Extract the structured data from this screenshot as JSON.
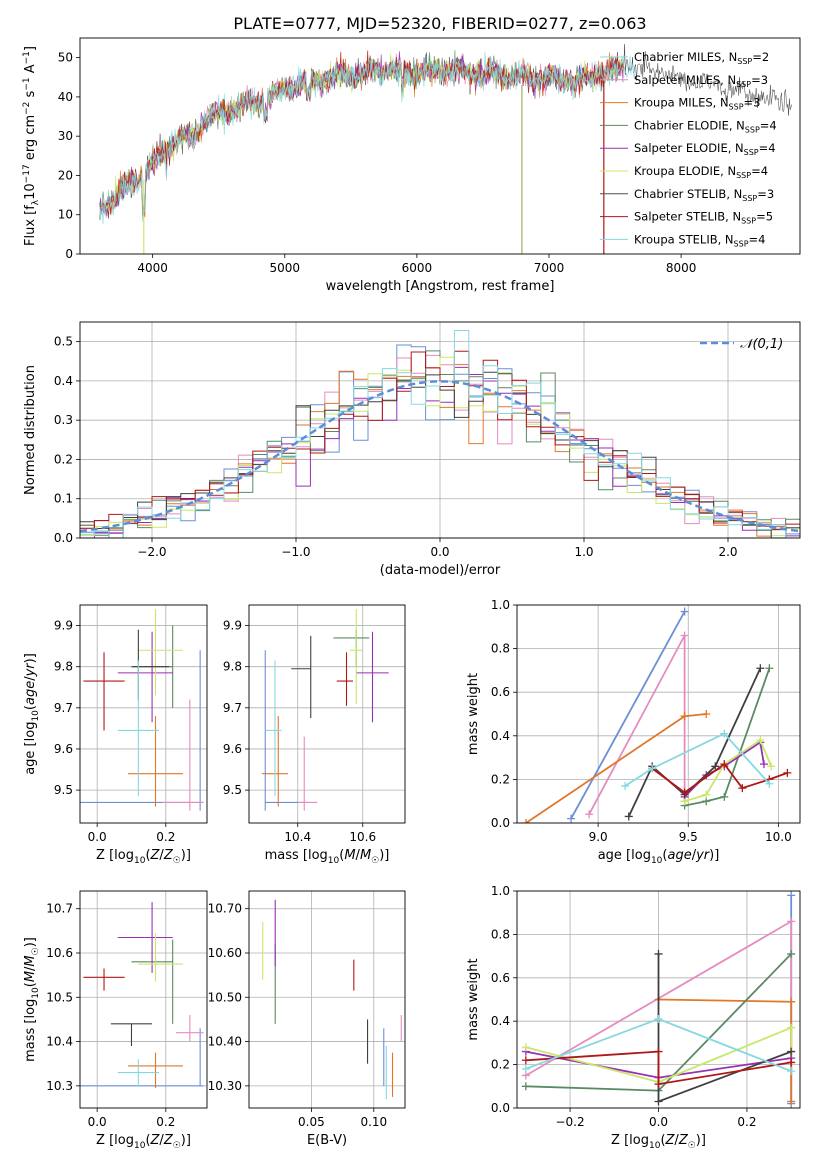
{
  "figure": {
    "title": "PLATE=0777, MJD=52320, FIBERID=0277, z=0.063"
  },
  "colors": {
    "c0": "#6a8fd6",
    "c1": "#e68bbf",
    "c2": "#e0772a",
    "c3": "#5a8a63",
    "c4": "#9a2fb5",
    "c5": "#c8e86a",
    "c6": "#505050",
    "c7": "#b01818",
    "c8": "#86d8e0"
  },
  "chart_data": [
    {
      "id": "spectrum",
      "type": "line",
      "xlabel": "wavelength [Angstrom, rest frame]",
      "ylabel": "Flux [f_λ10⁻¹⁷ erg cm⁻² s⁻¹ A⁻¹]",
      "xlim": [
        3450,
        8900
      ],
      "ylim": [
        0,
        55
      ],
      "xticks": [
        4000,
        5000,
        6000,
        7000,
        8000
      ],
      "yticks": [
        0,
        10,
        20,
        30,
        40,
        50
      ],
      "grid": false,
      "legend_placement": "upper right",
      "series": [
        {
          "name": "Chabrier MILES, N_SSP=2",
          "color_key": "c8"
        },
        {
          "name": "Salpeter MILES, N_SSP=3",
          "color_key": "c1"
        },
        {
          "name": "Kroupa MILES, N_SSP=3",
          "color_key": "c2"
        },
        {
          "name": "Chabrier ELODIE, N_SSP=4",
          "color_key": "c3"
        },
        {
          "name": "Salpeter ELODIE, N_SSP=4",
          "color_key": "c4"
        },
        {
          "name": "Kroupa ELODIE, N_SSP=4",
          "color_key": "c5"
        },
        {
          "name": "Chabrier STELIB, N_SSP=3",
          "color_key": "c6"
        },
        {
          "name": "Salpeter STELIB, N_SSP=5",
          "color_key": "c7"
        },
        {
          "name": "Kroupa STELIB, N_SSP=4",
          "color_key": "c8"
        }
      ],
      "data_envelope": {
        "x": [
          3600,
          3700,
          3800,
          3900,
          4000,
          4100,
          4200,
          4300,
          4400,
          4600,
          4800,
          5000,
          5200,
          5400,
          5600,
          5800,
          6000,
          6200,
          6400,
          6600,
          6800,
          7000,
          7200,
          7400,
          7600,
          7800,
          8000,
          8200,
          8400,
          8600,
          8800
        ],
        "y": [
          12,
          14,
          17,
          20,
          23,
          27,
          29,
          30,
          34,
          37,
          39,
          42,
          44,
          45,
          46,
          47,
          46,
          47,
          46,
          46,
          45,
          45,
          44,
          46,
          48,
          47,
          44,
          44,
          42,
          40,
          38
        ]
      },
      "sharp_dips": [
        {
          "x": 3933,
          "y": 0
        },
        {
          "x": 6795,
          "y": 0
        },
        {
          "x": 7415,
          "y": 0
        }
      ]
    },
    {
      "id": "residual_hist",
      "type": "step-histogram",
      "xlabel": "(data-model)/error",
      "ylabel": "Normed distribution",
      "xlim": [
        -2.5,
        2.5
      ],
      "ylim": [
        0,
        0.55
      ],
      "xticks": [
        -2,
        -1,
        0,
        1,
        2
      ],
      "yticks": [
        0.0,
        0.1,
        0.2,
        0.3,
        0.4,
        0.5
      ],
      "grid": true,
      "legend_placement": "upper right",
      "reference_curve": {
        "name": "𝒩(0,1)",
        "mean": 0,
        "sigma": 1,
        "color": "#5b8dd9"
      },
      "bin_width": 0.1,
      "series_count": 9
    },
    {
      "id": "age_vs_Z",
      "type": "errorbar",
      "xlabel": "Z [log₁₀(Z/Z☉)]",
      "ylabel": "age  [log₁₀(age/yr)]",
      "xlim": [
        -0.05,
        0.32
      ],
      "ylim": [
        9.42,
        9.95
      ],
      "xticks": [
        0.0,
        0.2
      ],
      "yticks": [
        9.5,
        9.6,
        9.7,
        9.8,
        9.9
      ],
      "grid": true,
      "points": [
        {
          "color_key": "c0",
          "x": 0.3,
          "xerr": [
            0.35,
            0.01
          ],
          "y": 9.47,
          "yerr": [
            0.02,
            0.37
          ]
        },
        {
          "color_key": "c1",
          "x": 0.27,
          "xerr": [
            0.08,
            0.04
          ],
          "y": 9.47,
          "yerr": [
            0.02,
            0.25
          ]
        },
        {
          "color_key": "c2",
          "x": 0.17,
          "xerr": [
            0.08,
            0.08
          ],
          "y": 9.54,
          "yerr": [
            0.08,
            0.14
          ]
        },
        {
          "color_key": "c3",
          "x": 0.22,
          "xerr": [
            0.12,
            0.0
          ],
          "y": 9.8,
          "yerr": [
            0.1,
            0.1
          ]
        },
        {
          "color_key": "c4",
          "x": 0.16,
          "xerr": [
            0.1,
            0.06
          ],
          "y": 9.785,
          "yerr": [
            0.12,
            0.1
          ]
        },
        {
          "color_key": "c5",
          "x": 0.17,
          "xerr": [
            0.05,
            0.08
          ],
          "y": 9.84,
          "yerr": [
            0.11,
            0.1
          ]
        },
        {
          "color_key": "c6",
          "x": 0.12,
          "xerr": [
            0.02,
            0.09
          ],
          "y": 9.8,
          "yerr": [
            0.08,
            0.09
          ]
        },
        {
          "color_key": "c7",
          "x": 0.02,
          "xerr": [
            0.06,
            0.06
          ],
          "y": 9.765,
          "yerr": [
            0.12,
            0.07
          ]
        },
        {
          "color_key": "c8",
          "x": 0.12,
          "xerr": [
            0.06,
            0.06
          ],
          "y": 9.645,
          "yerr": [
            0.16,
            0.17
          ]
        }
      ]
    },
    {
      "id": "age_vs_mass",
      "type": "errorbar",
      "xlabel": "mass [log₁₀(M/M☉)]",
      "ylabel": "",
      "xlim": [
        10.25,
        10.73
      ],
      "ylim": [
        9.42,
        9.95
      ],
      "xticks": [
        10.4,
        10.6
      ],
      "yticks": [
        9.5,
        9.6,
        9.7,
        9.8,
        9.9
      ],
      "grid": true,
      "points": [
        {
          "color_key": "c0",
          "x": 10.3,
          "xerr": [
            0.0,
            0.13
          ],
          "y": 9.47,
          "yerr": [
            0.02,
            0.37
          ]
        },
        {
          "color_key": "c1",
          "x": 10.42,
          "xerr": [
            0.02,
            0.04
          ],
          "y": 9.47,
          "yerr": [
            0.02,
            0.16
          ]
        },
        {
          "color_key": "c2",
          "x": 10.34,
          "xerr": [
            0.05,
            0.03
          ],
          "y": 9.54,
          "yerr": [
            0.08,
            0.14
          ]
        },
        {
          "color_key": "c3",
          "x": 10.58,
          "xerr": [
            0.07,
            0.04
          ],
          "y": 9.87,
          "yerr": [
            0.07,
            0.02
          ]
        },
        {
          "color_key": "c4",
          "x": 10.63,
          "xerr": [
            0.05,
            0.05
          ],
          "y": 9.785,
          "yerr": [
            0.12,
            0.1
          ]
        },
        {
          "color_key": "c5",
          "x": 10.58,
          "xerr": [
            0.02,
            0.02
          ],
          "y": 9.84,
          "yerr": [
            0.13,
            0.1
          ]
        },
        {
          "color_key": "c6",
          "x": 10.44,
          "xerr": [
            0.06,
            0.0
          ],
          "y": 9.795,
          "yerr": [
            0.12,
            0.08
          ]
        },
        {
          "color_key": "c7",
          "x": 10.55,
          "xerr": [
            0.03,
            0.02
          ],
          "y": 9.765,
          "yerr": [
            0.06,
            0.07
          ]
        },
        {
          "color_key": "c8",
          "x": 10.33,
          "xerr": [
            0.03,
            0.02
          ],
          "y": 9.645,
          "yerr": [
            0.16,
            0.17
          ]
        }
      ]
    },
    {
      "id": "massweight_vs_age",
      "type": "line",
      "xlabel": "age  [log₁₀(age/yr)]",
      "ylabel": "mass weight",
      "xlim": [
        8.55,
        10.12
      ],
      "ylim": [
        0,
        1.0
      ],
      "xticks": [
        9.0,
        9.5,
        10.0
      ],
      "yticks": [
        0.0,
        0.2,
        0.4,
        0.6,
        0.8,
        1.0
      ],
      "grid": true,
      "series": [
        {
          "color_key": "c0",
          "x": [
            8.85,
            9.48
          ],
          "y": [
            0.02,
            0.97
          ]
        },
        {
          "color_key": "c1",
          "x": [
            8.95,
            9.48,
            9.48
          ],
          "y": [
            0.04,
            0.86,
            0.1
          ]
        },
        {
          "color_key": "c2",
          "x": [
            8.6,
            9.48,
            9.6
          ],
          "y": [
            0.0,
            0.49,
            0.5
          ]
        },
        {
          "color_key": "c3",
          "x": [
            9.48,
            9.6,
            9.7,
            9.95
          ],
          "y": [
            0.08,
            0.1,
            0.12,
            0.71
          ]
        },
        {
          "color_key": "c4",
          "x": [
            9.48,
            9.6,
            9.7,
            9.9,
            9.92
          ],
          "y": [
            0.12,
            0.22,
            0.26,
            0.37,
            0.27
          ]
        },
        {
          "color_key": "c5",
          "x": [
            9.48,
            9.6,
            9.7,
            9.9,
            9.96
          ],
          "y": [
            0.1,
            0.13,
            0.27,
            0.38,
            0.26
          ]
        },
        {
          "color_key": "c6",
          "x": [
            9.17,
            9.3,
            9.48,
            9.65,
            9.9
          ],
          "y": [
            0.03,
            0.26,
            0.13,
            0.26,
            0.71
          ]
        },
        {
          "color_key": "c7",
          "x": [
            9.3,
            9.48,
            9.7,
            9.8,
            9.95,
            10.05
          ],
          "y": [
            0.25,
            0.14,
            0.27,
            0.16,
            0.2,
            0.23
          ]
        },
        {
          "color_key": "c8",
          "x": [
            9.15,
            9.3,
            9.7,
            9.95
          ],
          "y": [
            0.17,
            0.25,
            0.41,
            0.18
          ]
        }
      ]
    },
    {
      "id": "mass_vs_Z",
      "type": "errorbar",
      "xlabel": "Z [log₁₀(Z/Z☉)]",
      "ylabel": "mass [log₁₀(M/M☉)]",
      "xlim": [
        -0.05,
        0.32
      ],
      "ylim": [
        10.25,
        10.74
      ],
      "xticks": [
        0.0,
        0.2
      ],
      "yticks": [
        10.3,
        10.4,
        10.5,
        10.6,
        10.7
      ],
      "grid": true,
      "points": [
        {
          "color_key": "c0",
          "x": 0.3,
          "xerr": [
            0.35,
            0.01
          ],
          "y": 10.3,
          "yerr": [
            0.0,
            0.13
          ]
        },
        {
          "color_key": "c1",
          "x": 0.27,
          "xerr": [
            0.04,
            0.04
          ],
          "y": 10.42,
          "yerr": [
            0.02,
            0.04
          ]
        },
        {
          "color_key": "c2",
          "x": 0.17,
          "xerr": [
            0.08,
            0.08
          ],
          "y": 10.345,
          "yerr": [
            0.05,
            0.03
          ]
        },
        {
          "color_key": "c3",
          "x": 0.22,
          "xerr": [
            0.12,
            0.0
          ],
          "y": 10.58,
          "yerr": [
            0.14,
            0.05
          ]
        },
        {
          "color_key": "c4",
          "x": 0.16,
          "xerr": [
            0.1,
            0.06
          ],
          "y": 10.635,
          "yerr": [
            0.08,
            0.08
          ]
        },
        {
          "color_key": "c5",
          "x": 0.17,
          "xerr": [
            0.05,
            0.08
          ],
          "y": 10.575,
          "yerr": [
            0.04,
            0.07
          ]
        },
        {
          "color_key": "c6",
          "x": 0.1,
          "xerr": [
            0.06,
            0.06
          ],
          "y": 10.44,
          "yerr": [
            0.05,
            0.0
          ]
        },
        {
          "color_key": "c7",
          "x": 0.02,
          "xerr": [
            0.06,
            0.06
          ],
          "y": 10.545,
          "yerr": [
            0.03,
            0.02
          ]
        },
        {
          "color_key": "c8",
          "x": 0.12,
          "xerr": [
            0.06,
            0.06
          ],
          "y": 10.33,
          "yerr": [
            0.03,
            0.03
          ]
        }
      ]
    },
    {
      "id": "mass_vs_EBV",
      "type": "errorbar",
      "xlabel": "E(B-V)",
      "ylabel": "",
      "xlim": [
        0.0,
        0.125
      ],
      "ylim": [
        10.25,
        10.74
      ],
      "xticks": [
        0.05,
        0.1
      ],
      "yticks": [
        10.3,
        10.4,
        10.5,
        10.6,
        10.7
      ],
      "grid": true,
      "points": [
        {
          "color_key": "c0",
          "x": 0.108,
          "xerr": [
            0,
            0
          ],
          "y": 10.33,
          "yerr": [
            0.03,
            0.1
          ]
        },
        {
          "color_key": "c1",
          "x": 0.122,
          "xerr": [
            0,
            0
          ],
          "y": 10.42,
          "yerr": [
            0.02,
            0.04
          ]
        },
        {
          "color_key": "c2",
          "x": 0.115,
          "xerr": [
            0,
            0
          ],
          "y": 10.345,
          "yerr": [
            0.07,
            0.03
          ]
        },
        {
          "color_key": "c3",
          "x": 0.021,
          "xerr": [
            0,
            0
          ],
          "y": 10.52,
          "yerr": [
            0.08,
            0.1
          ]
        },
        {
          "color_key": "c4",
          "x": 0.021,
          "xerr": [
            0,
            0
          ],
          "y": 10.65,
          "yerr": [
            0.08,
            0.07
          ]
        },
        {
          "color_key": "c5",
          "x": 0.011,
          "xerr": [
            0,
            0
          ],
          "y": 10.61,
          "yerr": [
            0.07,
            0.06
          ]
        },
        {
          "color_key": "c6",
          "x": 0.095,
          "xerr": [
            0,
            0
          ],
          "y": 10.4,
          "yerr": [
            0.05,
            0.05
          ]
        },
        {
          "color_key": "c7",
          "x": 0.084,
          "xerr": [
            0,
            0
          ],
          "y": 10.545,
          "yerr": [
            0.03,
            0.04
          ]
        },
        {
          "color_key": "c8",
          "x": 0.11,
          "xerr": [
            0,
            0
          ],
          "y": 10.33,
          "yerr": [
            0.06,
            0.06
          ]
        }
      ]
    },
    {
      "id": "massweight_vs_Z",
      "type": "line",
      "xlabel": "Z [log₁₀(Z/Z☉)]",
      "ylabel": "mass weight",
      "xlim": [
        -0.32,
        0.32
      ],
      "ylim": [
        0,
        1.0
      ],
      "xticks": [
        -0.2,
        0.0,
        0.2
      ],
      "yticks": [
        0.0,
        0.2,
        0.4,
        0.6,
        0.8,
        1.0
      ],
      "grid": true,
      "series": [
        {
          "color_key": "c0",
          "x": [
            0.3,
            0.3
          ],
          "y": [
            0.02,
            0.98
          ]
        },
        {
          "color_key": "c1",
          "x": [
            -0.3,
            0.3,
            0.3
          ],
          "y": [
            0.15,
            0.86,
            0.03
          ]
        },
        {
          "color_key": "c2",
          "x": [
            0.0,
            0.3,
            0.3
          ],
          "y": [
            0.5,
            0.49,
            0.03
          ]
        },
        {
          "color_key": "c3",
          "x": [
            -0.3,
            0.0,
            0.3
          ],
          "y": [
            0.1,
            0.08,
            0.71
          ]
        },
        {
          "color_key": "c4",
          "x": [
            -0.3,
            0.0,
            0.3
          ],
          "y": [
            0.26,
            0.14,
            0.23
          ]
        },
        {
          "color_key": "c5",
          "x": [
            -0.3,
            0.0,
            0.3,
            0.3
          ],
          "y": [
            0.28,
            0.12,
            0.37,
            0.26
          ]
        },
        {
          "color_key": "c6",
          "x": [
            0.0,
            0.0,
            0.3
          ],
          "y": [
            0.71,
            0.03,
            0.26
          ]
        },
        {
          "color_key": "c7",
          "x": [
            -0.3,
            0.0,
            0.0,
            0.3
          ],
          "y": [
            0.22,
            0.26,
            0.11,
            0.21
          ]
        },
        {
          "color_key": "c8",
          "x": [
            -0.3,
            0.0,
            0.3
          ],
          "y": [
            0.18,
            0.41,
            0.17
          ]
        }
      ]
    }
  ]
}
